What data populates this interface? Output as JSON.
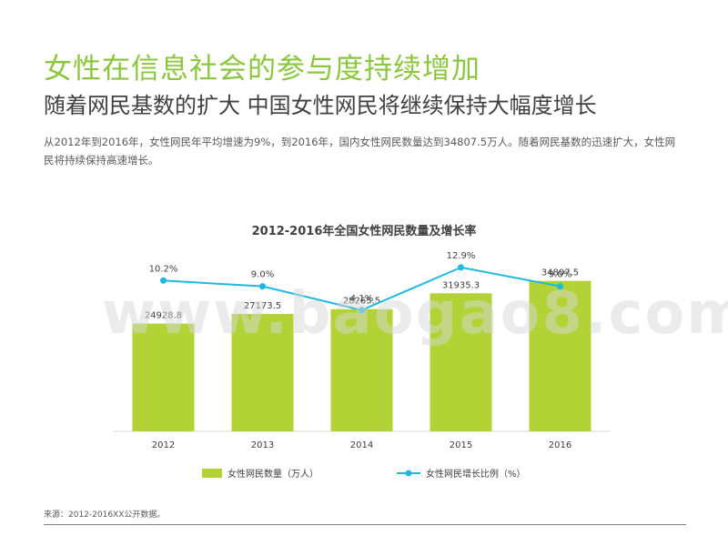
{
  "header": {
    "title": "女性在信息社会的参与度持续增加",
    "subtitle": "随着网民基数的扩大 中国女性网民将继续保持大幅度增长"
  },
  "intro": "从2012年到2016年，女性网民年平均增速为9%，到2016年，国内女性网民数量达到34807.5万人。随着网民基数的迅速扩大，女性网民将持续保持高速增长。",
  "watermark": "www.baogao8.com",
  "footer": {
    "source": "来源：2012-2016XX公开数据。"
  },
  "colors": {
    "title": "#8cc63f",
    "bar": "#b2d235",
    "line": "#1fb8e0",
    "text": "#404040"
  },
  "chart_data": {
    "type": "bar",
    "title": "2012-2016年全国女性网民数量及增长率",
    "categories": [
      "2012",
      "2013",
      "2014",
      "2015",
      "2016"
    ],
    "series": [
      {
        "name": "女性网民数量（万人）",
        "type": "bar",
        "values": [
          24928.8,
          27173.5,
          28265.5,
          31935.3,
          34807.5
        ],
        "labels": [
          "24928.8",
          "27173.5",
          "28265.5",
          "31935.3",
          "34807.5"
        ]
      },
      {
        "name": "女性网民增长比例（%）",
        "type": "line",
        "values": [
          10.2,
          9.0,
          4.1,
          12.9,
          9.0
        ],
        "labels": [
          "10.2%",
          "9.0%",
          "4.1%",
          "12.9%",
          "9.0%"
        ]
      }
    ],
    "bar_ylim": [
      0,
      40000
    ],
    "line_ylim": [
      -10,
      20
    ],
    "legend_position": "bottom",
    "grid": false
  }
}
